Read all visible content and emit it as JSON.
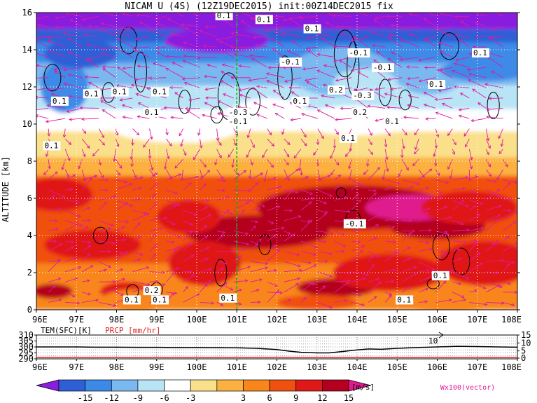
{
  "title": "NICAM U (4S) (12Z19DEC2015) init:00Z14DEC2015 fix",
  "chart_data": [
    {
      "type": "heatmap",
      "title": "NICAM U (4S) (12Z19DEC2015) init:00Z14DEC2015 fix",
      "ylabel": "ALTITUDE [km]",
      "xlim": [
        96,
        108
      ],
      "ylim": [
        0,
        16
      ],
      "x_ticks": [
        "96E",
        "97E",
        "98E",
        "99E",
        "100E",
        "101E",
        "102E",
        "103E",
        "104E",
        "105E",
        "106E",
        "107E",
        "108E"
      ],
      "y_ticks": [
        "0",
        "2",
        "4",
        "6",
        "8",
        "10",
        "12",
        "14",
        "16"
      ],
      "grid": true,
      "marker_line_x": 101,
      "contour_labels": [
        {
          "x": 100.5,
          "y": 15.7,
          "text": "0.1"
        },
        {
          "x": 101.5,
          "y": 15.5,
          "text": "0.1"
        },
        {
          "x": 102.7,
          "y": 15.0,
          "text": "0.1"
        },
        {
          "x": 103.8,
          "y": 13.7,
          "text": "-0.1"
        },
        {
          "x": 102.1,
          "y": 13.2,
          "text": "-0.1"
        },
        {
          "x": 104.4,
          "y": 12.9,
          "text": "-0.1"
        },
        {
          "x": 106.9,
          "y": 13.7,
          "text": "0.1"
        },
        {
          "x": 96.4,
          "y": 11.1,
          "text": "0.1"
        },
        {
          "x": 97.2,
          "y": 11.5,
          "text": "0.1"
        },
        {
          "x": 97.9,
          "y": 11.6,
          "text": "0.1"
        },
        {
          "x": 98.9,
          "y": 11.6,
          "text": "0.1"
        },
        {
          "x": 103.3,
          "y": 11.7,
          "text": "0.2"
        },
        {
          "x": 103.9,
          "y": 11.4,
          "text": "-0.3"
        },
        {
          "x": 105.8,
          "y": 12.0,
          "text": "0.1"
        },
        {
          "x": 102.4,
          "y": 11.1,
          "text": "0.1"
        },
        {
          "x": 103.9,
          "y": 10.5,
          "text": "0.2"
        },
        {
          "x": 100.8,
          "y": 10.5,
          "text": "-0.3"
        },
        {
          "x": 100.8,
          "y": 10.0,
          "text": "-0.1"
        },
        {
          "x": 98.7,
          "y": 10.5,
          "text": "0.1"
        },
        {
          "x": 104.7,
          "y": 10.0,
          "text": "0.1"
        },
        {
          "x": 96.2,
          "y": 8.7,
          "text": "0.1"
        },
        {
          "x": 103.6,
          "y": 9.1,
          "text": "0.1"
        },
        {
          "x": 103.7,
          "y": 4.5,
          "text": "-0.1"
        },
        {
          "x": 105.9,
          "y": 1.7,
          "text": "0.1"
        },
        {
          "x": 98.7,
          "y": 0.9,
          "text": "0.2"
        },
        {
          "x": 98.2,
          "y": 0.4,
          "text": "0.1"
        },
        {
          "x": 98.9,
          "y": 0.4,
          "text": "0.1"
        },
        {
          "x": 100.6,
          "y": 0.5,
          "text": "0.1"
        },
        {
          "x": 105.0,
          "y": 0.4,
          "text": "0.1"
        }
      ]
    },
    {
      "type": "line",
      "series": [
        {
          "name": "TEM(SFC)[K]",
          "x": [
            96,
            96.5,
            97,
            97.5,
            98,
            98.5,
            99,
            99.5,
            100,
            100.5,
            101,
            101.5,
            102,
            102.3,
            102.6,
            103,
            103.3,
            103.6,
            104,
            104.3,
            104.6,
            105,
            105.5,
            106,
            106.5,
            107,
            107.5,
            108
          ],
          "values": [
            300,
            300,
            300,
            299.8,
            299.8,
            299.6,
            299.6,
            299.5,
            299.5,
            299.4,
            299.3,
            298.8,
            297.8,
            296.5,
            295.5,
            295.0,
            295.0,
            296.0,
            297.5,
            298.3,
            298.0,
            298.8,
            299.5,
            300,
            300.5,
            300.3,
            300,
            299.8
          ]
        },
        {
          "name": "PRCP [mm/hr]",
          "x": [
            96,
            108
          ],
          "values": [
            0,
            0
          ]
        }
      ],
      "left_axis_label": "TEM(SFC)[K]",
      "right_axis_label": "PRCP [mm/hr]",
      "left_ticks": [
        "290",
        "295",
        "300",
        "305",
        "310"
      ],
      "right_ticks": [
        "0",
        "5",
        "10",
        "15"
      ],
      "annotation": "10",
      "xlim": [
        96,
        108
      ],
      "x_ticks": [
        "96E",
        "97E",
        "98E",
        "99E",
        "100E",
        "101E",
        "102E",
        "103E",
        "104E",
        "105E",
        "106E",
        "107E",
        "108E"
      ]
    }
  ],
  "colorbar": {
    "ticks": [
      "-15",
      "-12",
      "-9",
      "-6",
      "-3",
      "3",
      "6",
      "9",
      "12",
      "15"
    ],
    "unit": "[m/s]",
    "colors": [
      "#8a1ee0",
      "#2e5fd6",
      "#3c8ae8",
      "#7ab8f0",
      "#b8e4f6",
      "#ffffff",
      "#fae08a",
      "#fbb040",
      "#f8861a",
      "#f05010",
      "#e01818",
      "#b4001e",
      "#e01a8c"
    ]
  },
  "vector_label": "Wx100(vector)",
  "colors": {
    "vector": "#e01aa0",
    "precip": "#e02020",
    "marker_line": "#10b010"
  }
}
